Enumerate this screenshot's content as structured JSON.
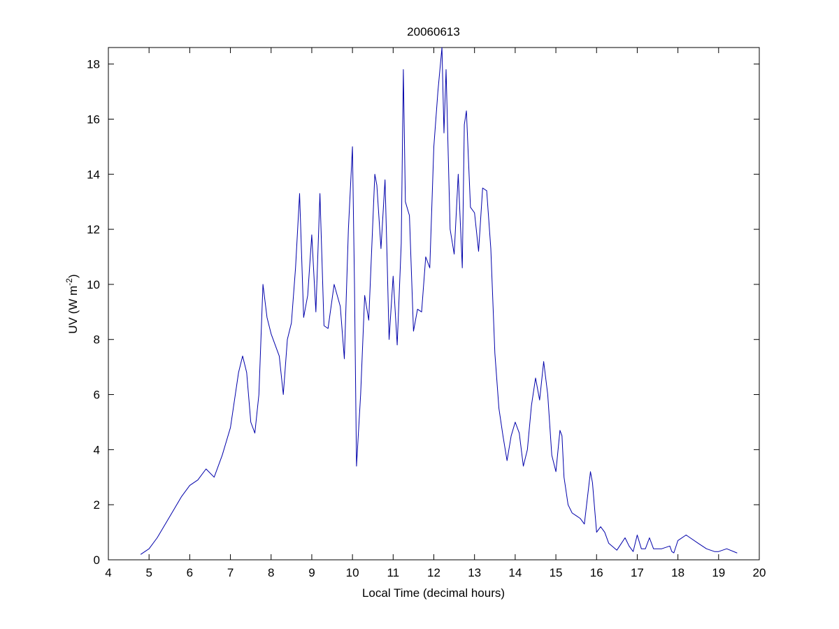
{
  "chart_data": {
    "type": "line",
    "title": "20060613",
    "xlabel": "Local Time (decimal hours)",
    "ylabel": {
      "main": "UV (W m",
      "superscript": "-2",
      "suffix": ")"
    },
    "xlim": [
      4,
      20
    ],
    "ylim": [
      0,
      18.6
    ],
    "x_ticks": [
      4,
      5,
      6,
      7,
      8,
      9,
      10,
      11,
      12,
      13,
      14,
      15,
      16,
      17,
      18,
      19,
      20
    ],
    "y_ticks": [
      0,
      2,
      4,
      6,
      8,
      10,
      12,
      14,
      16,
      18
    ],
    "grid": false,
    "legend": false,
    "series": [
      {
        "color": "#0000aa",
        "x": [
          4.8,
          5.0,
          5.2,
          5.4,
          5.6,
          5.8,
          6.0,
          6.2,
          6.4,
          6.6,
          6.8,
          7.0,
          7.1,
          7.2,
          7.3,
          7.4,
          7.5,
          7.6,
          7.7,
          7.75,
          7.8,
          7.9,
          8.0,
          8.2,
          8.3,
          8.4,
          8.5,
          8.6,
          8.7,
          8.8,
          8.9,
          9.0,
          9.1,
          9.2,
          9.3,
          9.4,
          9.55,
          9.7,
          9.8,
          9.9,
          10.0,
          10.05,
          10.1,
          10.2,
          10.3,
          10.4,
          10.55,
          10.6,
          10.7,
          10.8,
          10.85,
          10.9,
          11.0,
          11.1,
          11.2,
          11.25,
          11.3,
          11.4,
          11.5,
          11.6,
          11.7,
          11.8,
          11.9,
          12.0,
          12.1,
          12.2,
          12.25,
          12.3,
          12.4,
          12.5,
          12.6,
          12.7,
          12.75,
          12.8,
          12.9,
          13.0,
          13.1,
          13.2,
          13.3,
          13.4,
          13.5,
          13.6,
          13.7,
          13.8,
          13.9,
          14.0,
          14.1,
          14.2,
          14.3,
          14.4,
          14.5,
          14.6,
          14.7,
          14.8,
          14.9,
          15.0,
          15.1,
          15.15,
          15.2,
          15.3,
          15.4,
          15.5,
          15.6,
          15.7,
          15.85,
          15.9,
          16.0,
          16.1,
          16.2,
          16.3,
          16.5,
          16.7,
          16.8,
          16.9,
          17.0,
          17.1,
          17.2,
          17.3,
          17.4,
          17.5,
          17.6,
          17.8,
          17.85,
          17.9,
          18.0,
          18.2,
          18.3,
          18.5,
          18.7,
          18.9,
          19.0,
          19.2,
          19.45
        ],
        "y": [
          0.2,
          0.4,
          0.8,
          1.3,
          1.8,
          2.3,
          2.7,
          2.9,
          3.3,
          3.0,
          3.8,
          4.8,
          5.8,
          6.8,
          7.4,
          6.8,
          5.0,
          4.6,
          6.0,
          8.0,
          10.0,
          8.8,
          8.2,
          7.4,
          6.0,
          8.0,
          8.6,
          10.6,
          13.3,
          8.8,
          9.6,
          11.8,
          9.0,
          13.3,
          8.5,
          8.4,
          10.0,
          9.2,
          7.3,
          12.0,
          15.0,
          10.0,
          3.4,
          6.0,
          9.6,
          8.7,
          14.0,
          13.6,
          11.3,
          13.8,
          11.0,
          8.0,
          10.3,
          7.8,
          11.5,
          17.8,
          13.0,
          12.5,
          8.3,
          9.1,
          9.0,
          11.0,
          10.6,
          15.0,
          17.0,
          18.6,
          15.5,
          17.8,
          12.0,
          11.1,
          14.0,
          10.6,
          15.8,
          16.3,
          12.8,
          12.6,
          11.2,
          13.5,
          13.4,
          11.3,
          7.5,
          5.5,
          4.5,
          3.6,
          4.5,
          5.0,
          4.6,
          3.4,
          4.0,
          5.6,
          6.6,
          5.8,
          7.2,
          6.0,
          3.8,
          3.2,
          4.7,
          4.5,
          3.0,
          2.0,
          1.7,
          1.6,
          1.5,
          1.3,
          3.2,
          2.8,
          1.0,
          1.2,
          1.0,
          0.6,
          0.35,
          0.8,
          0.5,
          0.3,
          0.9,
          0.4,
          0.4,
          0.8,
          0.4,
          0.4,
          0.4,
          0.5,
          0.3,
          0.25,
          0.7,
          0.9,
          0.8,
          0.6,
          0.4,
          0.3,
          0.3,
          0.4,
          0.25
        ]
      }
    ]
  }
}
